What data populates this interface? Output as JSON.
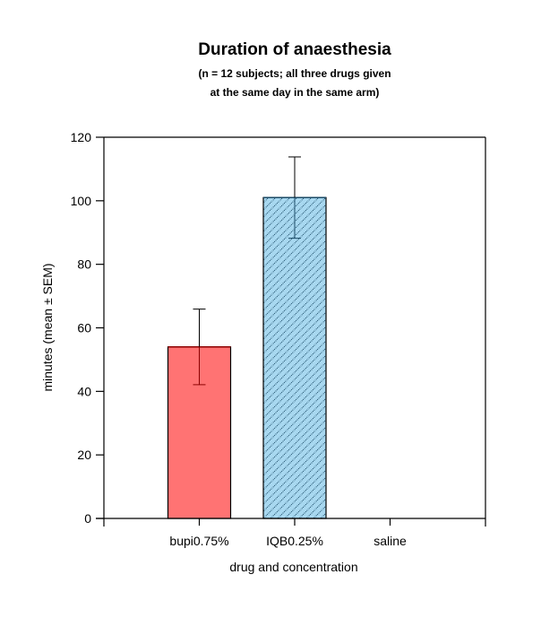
{
  "chart_data": {
    "type": "bar",
    "title": "Duration of anaesthesia",
    "subtitle_lines": [
      "(n = 12 subjects; all three drugs given",
      "at the same day in the same arm)"
    ],
    "xlabel": "drug and concentration",
    "ylabel": "minutes (mean ± SEM)",
    "ylim": [
      0,
      120
    ],
    "yticks": [
      0,
      20,
      40,
      60,
      80,
      100,
      120
    ],
    "categories": [
      "bupi0.75%",
      "IQB0.25%",
      "saline"
    ],
    "values": [
      54,
      101,
      0
    ],
    "errors": [
      11.9,
      12.8,
      0
    ],
    "bar_styles": [
      {
        "fill": "#ff7373",
        "pattern": "solid",
        "stroke": "#8b0000"
      },
      {
        "fill": "#a8d8f0",
        "pattern": "diagonal-hatch",
        "stroke": "#1a4a66"
      },
      {
        "fill": "none",
        "pattern": "none",
        "stroke": "none"
      }
    ],
    "grid": false,
    "frame": "box"
  }
}
